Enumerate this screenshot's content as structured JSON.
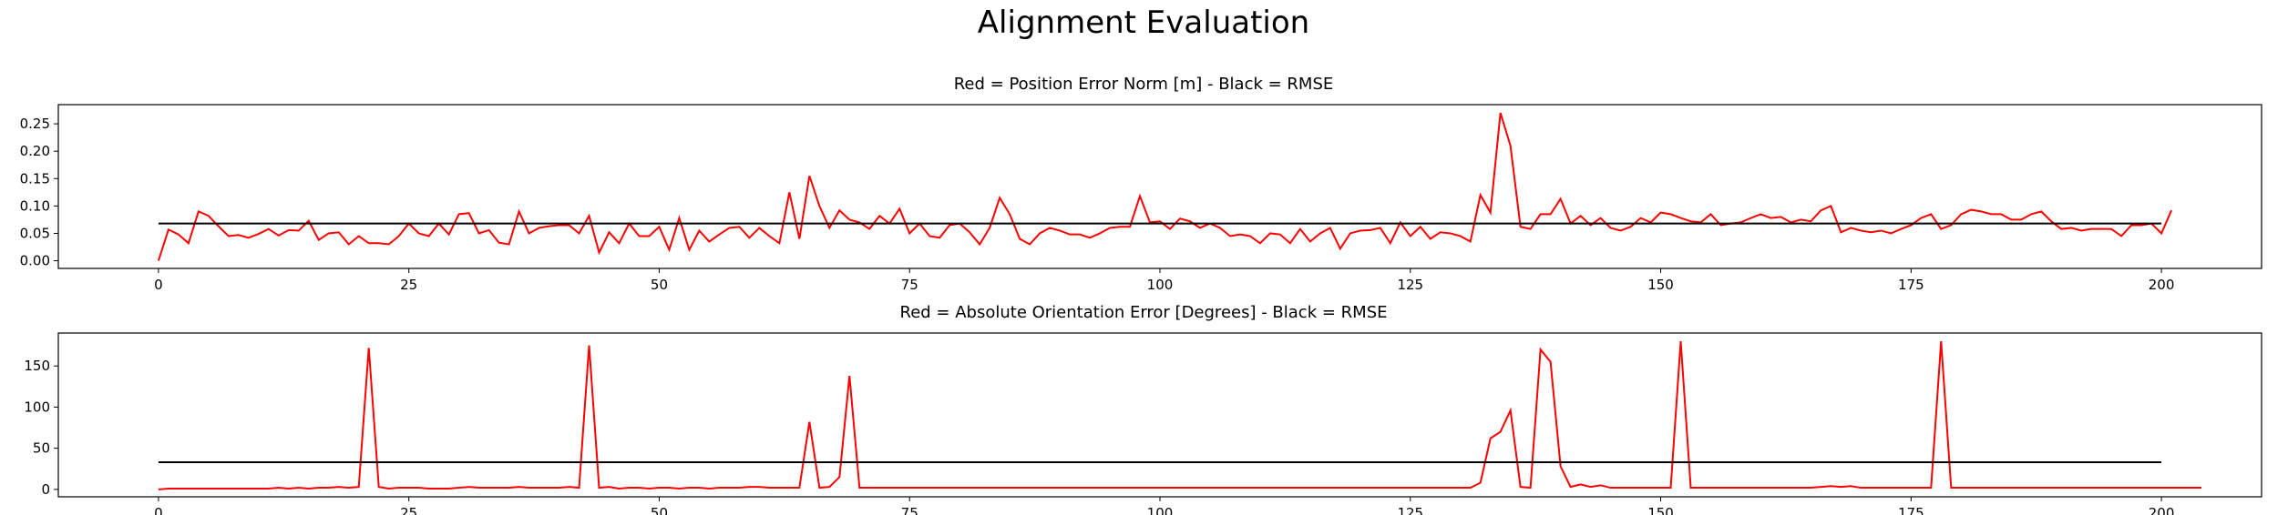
{
  "figure": {
    "title": "Alignment Evaluation"
  },
  "chart_data": [
    {
      "type": "line",
      "title": "Red = Position Error Norm [m] - Black = RMSE",
      "xlabel": "",
      "ylabel": "",
      "xlim": [
        -10,
        210
      ],
      "ylim": [
        -0.014,
        0.285
      ],
      "xticks": [
        0,
        25,
        50,
        75,
        100,
        125,
        150,
        175,
        200
      ],
      "xtick_labels": [
        "0",
        "25",
        "50",
        "75",
        "100",
        "125",
        "150",
        "175",
        "200"
      ],
      "yticks": [
        0,
        0.05,
        0.1,
        0.15,
        0.2,
        0.25
      ],
      "ytick_labels": [
        "0.00",
        "0.05",
        "0.10",
        "0.15",
        "0.20",
        "0.25"
      ],
      "grid": false,
      "series": [
        {
          "color": "#ff0000",
          "x_start": 0,
          "x_step": 1,
          "values": [
            0.0,
            0.057,
            0.048,
            0.032,
            0.09,
            0.082,
            0.063,
            0.045,
            0.047,
            0.042,
            0.049,
            0.058,
            0.046,
            0.056,
            0.055,
            0.073,
            0.038,
            0.05,
            0.052,
            0.03,
            0.045,
            0.032,
            0.032,
            0.03,
            0.045,
            0.068,
            0.05,
            0.045,
            0.068,
            0.048,
            0.085,
            0.087,
            0.05,
            0.056,
            0.033,
            0.03,
            0.09,
            0.05,
            0.06,
            0.063,
            0.065,
            0.065,
            0.05,
            0.082,
            0.015,
            0.052,
            0.032,
            0.068,
            0.045,
            0.045,
            0.062,
            0.02,
            0.078,
            0.02,
            0.055,
            0.035,
            0.048,
            0.06,
            0.062,
            0.042,
            0.06,
            0.045,
            0.032,
            0.125,
            0.04,
            0.155,
            0.1,
            0.06,
            0.092,
            0.075,
            0.07,
            0.058,
            0.082,
            0.068,
            0.095,
            0.05,
            0.068,
            0.045,
            0.042,
            0.065,
            0.068,
            0.052,
            0.03,
            0.06,
            0.115,
            0.085,
            0.04,
            0.03,
            0.05,
            0.06,
            0.055,
            0.048,
            0.048,
            0.042,
            0.05,
            0.06,
            0.062,
            0.062,
            0.118,
            0.07,
            0.072,
            0.058,
            0.077,
            0.072,
            0.06,
            0.068,
            0.06,
            0.045,
            0.048,
            0.045,
            0.032,
            0.05,
            0.048,
            0.032,
            0.058,
            0.035,
            0.05,
            0.06,
            0.022,
            0.05,
            0.055,
            0.056,
            0.06,
            0.032,
            0.07,
            0.045,
            0.062,
            0.04,
            0.052,
            0.05,
            0.045,
            0.035,
            0.12,
            0.088,
            0.27,
            0.21,
            0.062,
            0.058,
            0.085,
            0.085,
            0.113,
            0.068,
            0.082,
            0.065,
            0.078,
            0.06,
            0.055,
            0.062,
            0.078,
            0.07,
            0.088,
            0.085,
            0.078,
            0.072,
            0.07,
            0.085,
            0.065,
            0.068,
            0.07,
            0.078,
            0.085,
            0.078,
            0.08,
            0.07,
            0.075,
            0.072,
            0.092,
            0.1,
            0.052,
            0.06,
            0.055,
            0.052,
            0.055,
            0.05,
            0.058,
            0.065,
            0.078,
            0.085,
            0.058,
            0.065,
            0.085,
            0.093,
            0.09,
            0.085,
            0.085,
            0.075,
            0.075,
            0.085,
            0.09,
            0.072,
            0.058,
            0.06,
            0.055,
            0.058,
            0.058,
            0.058,
            0.045,
            0.065,
            0.065,
            0.068,
            0.05,
            0.092
          ]
        },
        {
          "color": "#000000",
          "x": [
            0,
            200
          ],
          "values": [
            0.068,
            0.068
          ]
        }
      ]
    },
    {
      "type": "line",
      "title": "Red = Absolute Orientation Error [Degrees] - Black = RMSE",
      "xlabel": "",
      "ylabel": "",
      "xlim": [
        -10,
        210
      ],
      "ylim": [
        -9,
        190
      ],
      "xticks": [
        0,
        25,
        50,
        75,
        100,
        125,
        150,
        175,
        200
      ],
      "xtick_labels": [
        "0",
        "25",
        "50",
        "75",
        "100",
        "125",
        "150",
        "175",
        "200"
      ],
      "yticks": [
        0,
        50,
        100,
        150
      ],
      "ytick_labels": [
        "0",
        "50",
        "100",
        "150"
      ],
      "grid": false,
      "series": [
        {
          "color": "#ff0000",
          "x_start": 0,
          "x_step": 1,
          "values": [
            0,
            1,
            1,
            1,
            1,
            1,
            1,
            1,
            1,
            1,
            1,
            1,
            2,
            1,
            2,
            1,
            2,
            2,
            3,
            2,
            3,
            172,
            3,
            1,
            2,
            2,
            2,
            1,
            1,
            1,
            2,
            3,
            2,
            2,
            2,
            2,
            3,
            2,
            2,
            2,
            2,
            3,
            2,
            175,
            2,
            3,
            1,
            2,
            2,
            1,
            2,
            2,
            1,
            2,
            2,
            1,
            2,
            2,
            2,
            3,
            3,
            2,
            2,
            2,
            2,
            82,
            2,
            3,
            15,
            138,
            2,
            2,
            2,
            2,
            2,
            2,
            2,
            2,
            2,
            2,
            2,
            2,
            2,
            2,
            2,
            2,
            2,
            2,
            2,
            2,
            2,
            2,
            2,
            2,
            2,
            2,
            2,
            2,
            2,
            2,
            2,
            2,
            2,
            2,
            2,
            2,
            2,
            2,
            2,
            2,
            2,
            2,
            2,
            2,
            2,
            2,
            2,
            2,
            2,
            2,
            2,
            2,
            2,
            2,
            2,
            2,
            2,
            2,
            2,
            2,
            2,
            2,
            8,
            62,
            70,
            96,
            3,
            2,
            170,
            155,
            28,
            3,
            6,
            3,
            5,
            2,
            2,
            2,
            2,
            2,
            2,
            2,
            180,
            2,
            2,
            2,
            2,
            2,
            2,
            2,
            2,
            2,
            2,
            2,
            2,
            2,
            3,
            4,
            3,
            4,
            2,
            2,
            2,
            2,
            2,
            2,
            2,
            2,
            180,
            2,
            2,
            2,
            2,
            2,
            2,
            2,
            2,
            2,
            2,
            2,
            2,
            2,
            2,
            2,
            2,
            2,
            2,
            2,
            2,
            2,
            2,
            2,
            2,
            2,
            2
          ]
        },
        {
          "color": "#000000",
          "x": [
            0,
            200
          ],
          "values": [
            33,
            33
          ]
        }
      ]
    }
  ]
}
